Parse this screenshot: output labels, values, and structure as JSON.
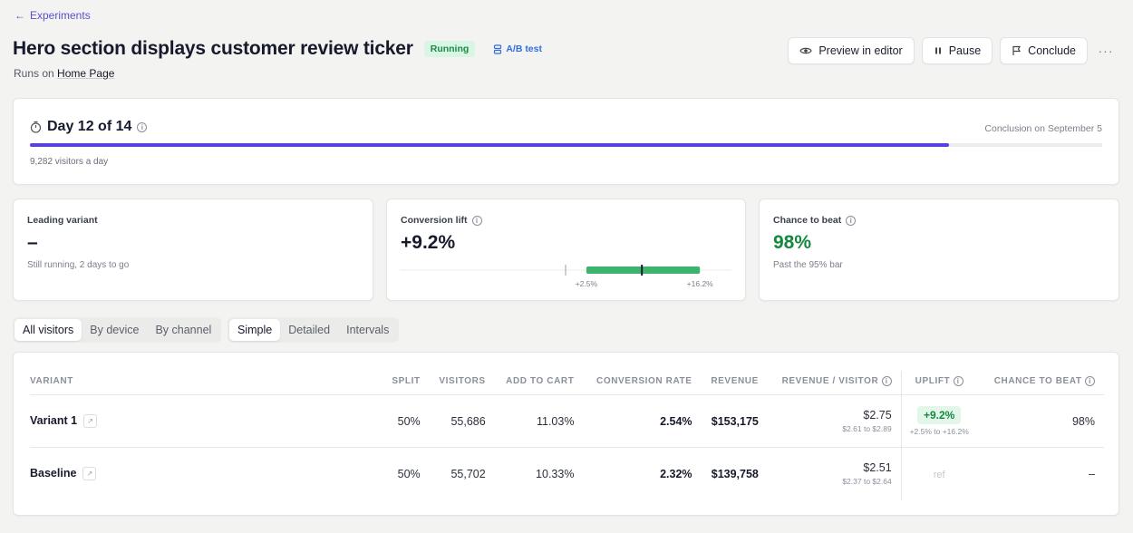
{
  "nav": {
    "back_label": "Experiments"
  },
  "header": {
    "title": "Hero section displays customer review ticker",
    "status": "Running",
    "type": "A/B test",
    "runs_on_prefix": "Runs on",
    "runs_on_page": "Home Page",
    "preview_label": "Preview in editor",
    "pause_label": "Pause",
    "conclude_label": "Conclude",
    "more_label": "···"
  },
  "progress": {
    "day_label": "Day 12 of 14",
    "conclusion": "Conclusion on September 5",
    "visitors_per_day": "9,282 visitors a day",
    "fraction": 0.857
  },
  "stats": {
    "leading": {
      "label": "Leading variant",
      "value": "–",
      "sub": "Still running, 2 days to go"
    },
    "lift": {
      "label": "Conversion lift",
      "value": "+9.2%",
      "low_label": "+2.5%",
      "high_label": "+16.2%",
      "low": 2.5,
      "point": 9.2,
      "high": 16.2
    },
    "chance": {
      "label": "Chance to beat",
      "value": "98%",
      "sub": "Past the 95% bar"
    }
  },
  "tabs": {
    "segment": [
      "All visitors",
      "By device",
      "By channel"
    ],
    "view": [
      "Simple",
      "Detailed",
      "Intervals"
    ]
  },
  "table": {
    "headers": [
      "VARIANT",
      "SPLIT",
      "VISITORS",
      "ADD TO CART",
      "CONVERSION RATE",
      "REVENUE",
      "REVENUE / VISITOR",
      "UPLIFT",
      "CHANCE TO BEAT"
    ],
    "rows": [
      {
        "variant": "Variant 1",
        "split": "50%",
        "visitors": "55,686",
        "add_to_cart": "11.03%",
        "conversion_rate": "2.54%",
        "revenue": "$153,175",
        "rpv": "$2.75",
        "rpv_range": "$2.61 to $2.89",
        "uplift": "+9.2%",
        "uplift_range": "+2.5% to +16.2%",
        "chance": "98%"
      },
      {
        "variant": "Baseline",
        "split": "50%",
        "visitors": "55,702",
        "add_to_cart": "10.33%",
        "conversion_rate": "2.32%",
        "revenue": "$139,758",
        "rpv": "$2.51",
        "rpv_range": "$2.37 to $2.64",
        "uplift": "ref",
        "chance": "–"
      }
    ]
  },
  "colors": {
    "accent": "#5d3fe0",
    "success": "#15883f",
    "link": "#2f6fe0"
  }
}
